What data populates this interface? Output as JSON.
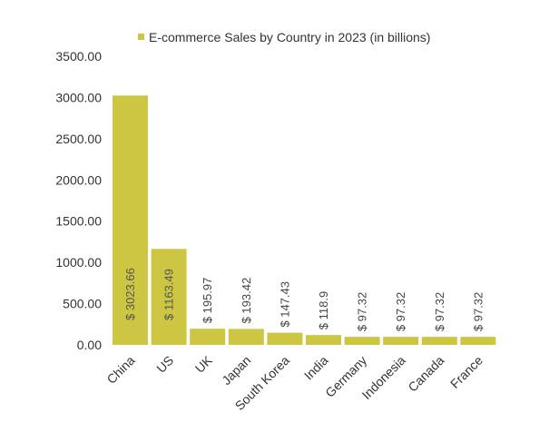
{
  "colors": {
    "bar": "#CCC642",
    "label_inside": "#555555",
    "label_outside": "#444444",
    "axis_text": "#333333"
  },
  "chart_data": {
    "type": "bar",
    "title": "",
    "legend": {
      "label": "E-commerce Sales by Country in 2023 (in billions)",
      "position": "top"
    },
    "categories": [
      "China",
      "US",
      "UK",
      "Japan",
      "South Korea",
      "India",
      "Germany",
      "Indonesia",
      "Canada",
      "France"
    ],
    "series": [
      {
        "name": "E-commerce Sales by Country in 2023 (in billions)",
        "values": [
          3023.66,
          1163.49,
          195.97,
          193.42,
          147.43,
          118.9,
          97.32,
          97.32,
          97.32,
          97.32
        ]
      }
    ],
    "data_labels": [
      "$ 3023.66",
      "$ 1163.49",
      "$ 195.97",
      "$ 193.42",
      "$ 147.43",
      "$ 118.9",
      "$ 97.32",
      "$ 97.32",
      "$ 97.32",
      "$ 97.32"
    ],
    "y_ticks": [
      "0.00",
      "500.00",
      "1000.00",
      "1500.00",
      "2000.00",
      "2500.00",
      "3000.00",
      "3500.00"
    ],
    "ylim": [
      0,
      3500
    ],
    "grid": false,
    "xlabel": "",
    "ylabel": ""
  }
}
